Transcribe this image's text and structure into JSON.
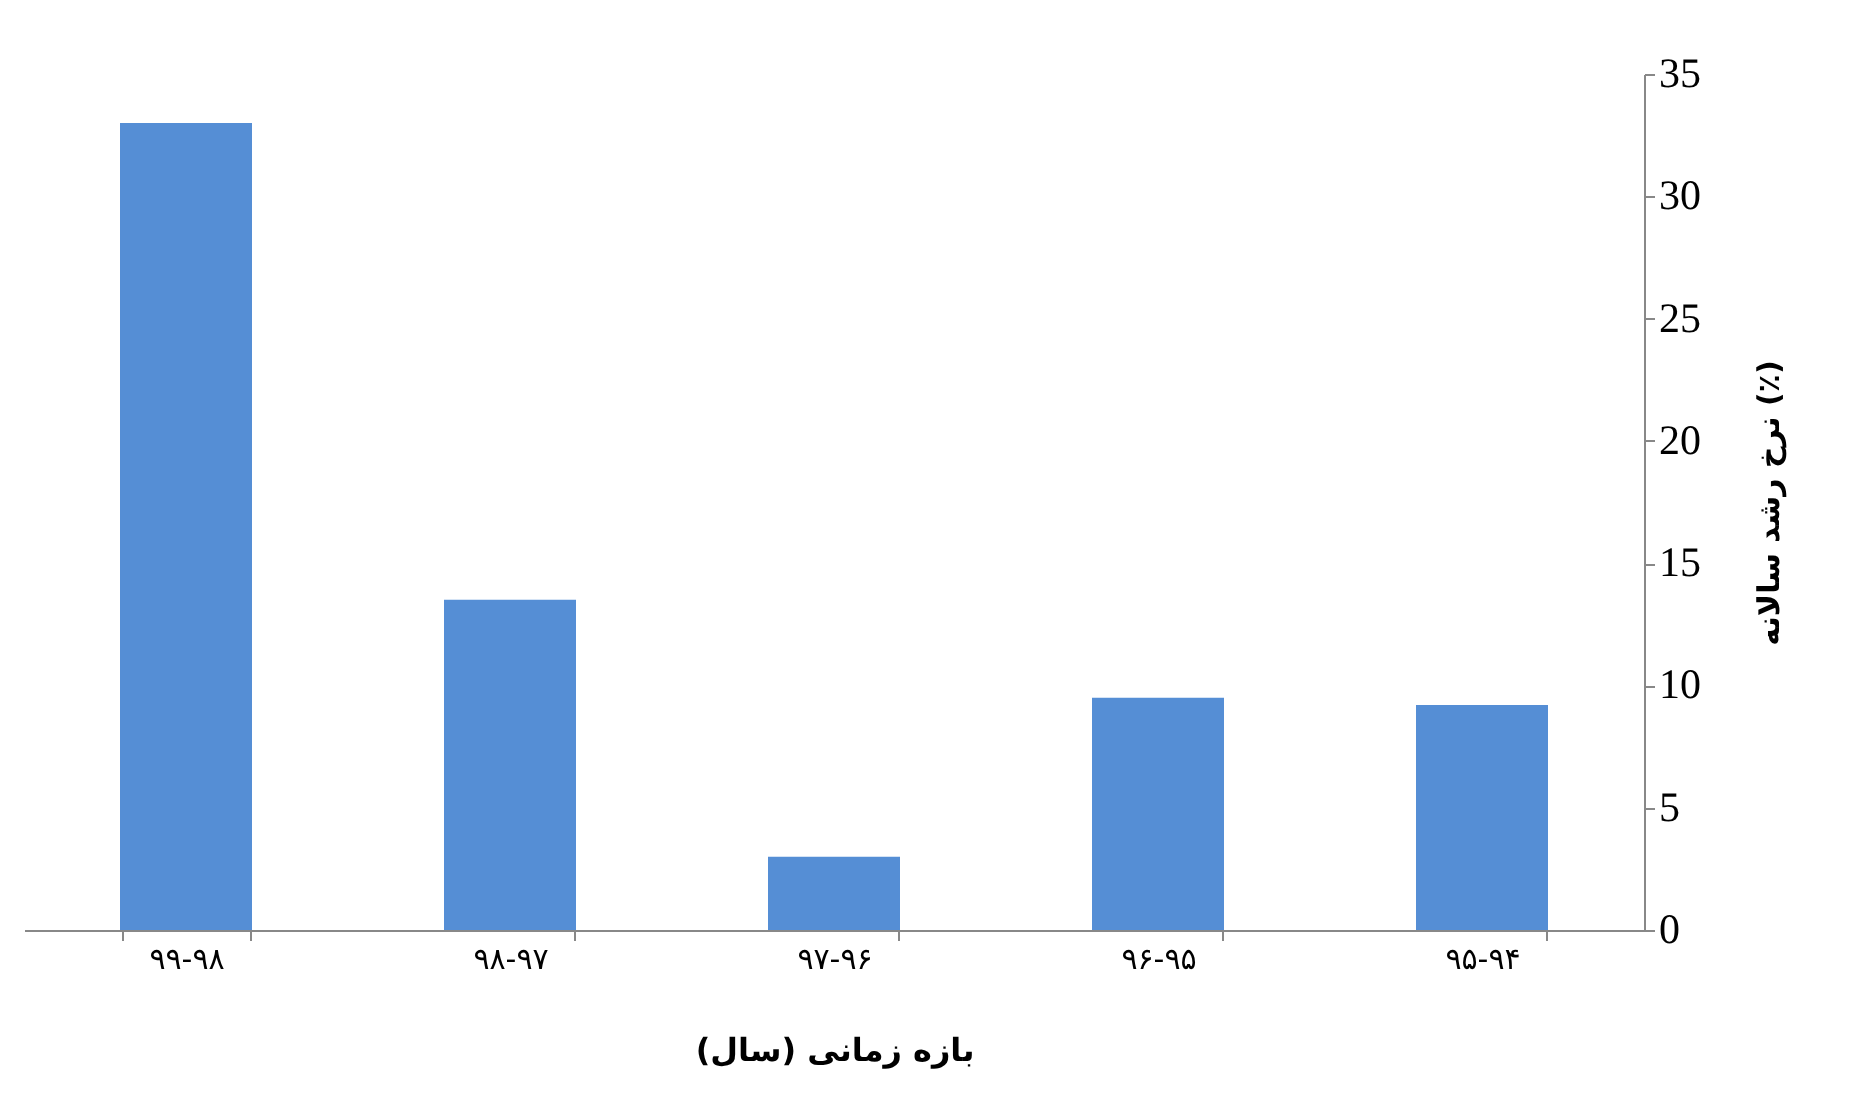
{
  "chart_data": {
    "type": "bar",
    "xlabel": "بازه زمانی (سال)",
    "ylabel": "نرخ رشد سالانه (٪)",
    "categories": [
      "۹۹-۹۸",
      "۹۸-۹۷",
      "۹۷-۹۶",
      "۹۶-۹۵",
      "۹۵-۹۴"
    ],
    "values": [
      33,
      13.5,
      3,
      9.5,
      9.2
    ],
    "color": "#558ed5",
    "ylim": [
      0,
      35
    ],
    "yticks": [
      0,
      5,
      10,
      15,
      20,
      25,
      30,
      35
    ],
    "grid": false
  }
}
